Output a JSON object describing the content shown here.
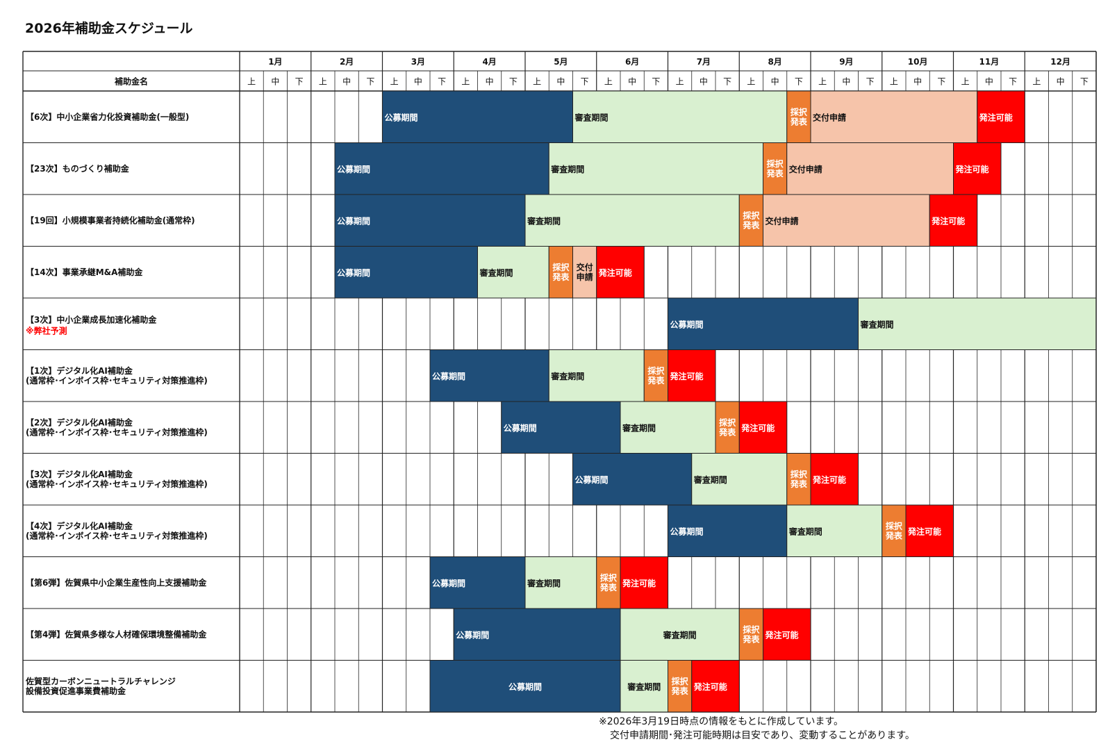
{
  "title": "2026年補助金スケジュール",
  "footnote": {
    "line1": "※2026年3月19日時点の情報をもとに作成しています。",
    "line2": "交付申請期間･発注可能時期は目安であり、変動することがあります。"
  },
  "colors": {
    "koubo": "#1f4e79",
    "shinsa": "#d9f0d0",
    "saitaku": "#ed7d31",
    "koufu": "#f6c4aa",
    "hatchu": "#ff0000"
  },
  "chart_data": {
    "type": "gantt",
    "title": "2026年補助金スケジュール",
    "row_header": "補助金名",
    "months": [
      "1月",
      "2月",
      "3月",
      "4月",
      "5月",
      "6月",
      "7月",
      "8月",
      "9月",
      "10月",
      "11月",
      "12月"
    ],
    "subperiods": [
      "上",
      "中",
      "下"
    ],
    "rows": [
      {
        "name": "【6次】中小企業省力化投資補助金(一般型)",
        "note": "",
        "segments": [
          {
            "phase": "koubo",
            "label": "公募期間",
            "start": 6,
            "end": 14
          },
          {
            "phase": "shinsa",
            "label": "審査期間",
            "start": 14,
            "end": 23
          },
          {
            "phase": "saitaku",
            "label": "採択\n発表",
            "start": 23,
            "end": 24
          },
          {
            "phase": "koufu",
            "label": "交付申請",
            "start": 24,
            "end": 31
          },
          {
            "phase": "hatchu",
            "label": "発注可能",
            "start": 31,
            "end": 33
          }
        ]
      },
      {
        "name": "【23次】ものづくり補助金",
        "note": "",
        "segments": [
          {
            "phase": "koubo",
            "label": "公募期間",
            "start": 4,
            "end": 13
          },
          {
            "phase": "shinsa",
            "label": "審査期間",
            "start": 13,
            "end": 22
          },
          {
            "phase": "saitaku",
            "label": "採択\n発表",
            "start": 22,
            "end": 23
          },
          {
            "phase": "koufu",
            "label": "交付申請",
            "start": 23,
            "end": 30
          },
          {
            "phase": "hatchu",
            "label": "発注可能",
            "start": 30,
            "end": 32
          }
        ]
      },
      {
        "name": "【19回】小規模事業者持続化補助金(通常枠)",
        "note": "",
        "segments": [
          {
            "phase": "koubo",
            "label": "公募期間",
            "start": 4,
            "end": 12
          },
          {
            "phase": "shinsa",
            "label": "審査期間",
            "start": 12,
            "end": 21
          },
          {
            "phase": "saitaku",
            "label": "採択\n発表",
            "start": 21,
            "end": 22
          },
          {
            "phase": "koufu",
            "label": "交付申請",
            "start": 22,
            "end": 29
          },
          {
            "phase": "hatchu",
            "label": "発注可能",
            "start": 29,
            "end": 31
          }
        ]
      },
      {
        "name": "【14次】事業承継M&A補助金",
        "note": "",
        "segments": [
          {
            "phase": "koubo",
            "label": "公募期間",
            "start": 4,
            "end": 10
          },
          {
            "phase": "shinsa",
            "label": "審査期間",
            "start": 10,
            "end": 13
          },
          {
            "phase": "saitaku",
            "label": "採択\n発表",
            "start": 13,
            "end": 14
          },
          {
            "phase": "koufu",
            "label": "交付\n申請",
            "start": 14,
            "end": 15
          },
          {
            "phase": "hatchu",
            "label": "発注可能",
            "start": 15,
            "end": 17
          }
        ]
      },
      {
        "name": "【3次】中小企業成長加速化補助金",
        "note": "※弊社予測",
        "segments": [
          {
            "phase": "koubo",
            "label": "公募期間",
            "start": 18,
            "end": 26
          },
          {
            "phase": "shinsa",
            "label": "審査期間",
            "start": 26,
            "end": 36
          }
        ]
      },
      {
        "name": "【1次】デジタル化AI補助金\n(通常枠･インボイス枠･セキュリティ対策推進枠)",
        "note": "",
        "segments": [
          {
            "phase": "koubo",
            "label": "公募期間",
            "start": 8,
            "end": 13
          },
          {
            "phase": "shinsa",
            "label": "審査期間",
            "start": 13,
            "end": 17
          },
          {
            "phase": "saitaku",
            "label": "採択\n発表",
            "start": 17,
            "end": 18
          },
          {
            "phase": "hatchu",
            "label": "発注可能",
            "start": 18,
            "end": 20
          }
        ]
      },
      {
        "name": "【2次】デジタル化AI補助金\n(通常枠･インボイス枠･セキュリティ対策推進枠)",
        "note": "",
        "segments": [
          {
            "phase": "koubo",
            "label": "公募期間",
            "start": 11,
            "end": 16
          },
          {
            "phase": "shinsa",
            "label": "審査期間",
            "start": 16,
            "end": 20
          },
          {
            "phase": "saitaku",
            "label": "採択\n発表",
            "start": 20,
            "end": 21
          },
          {
            "phase": "hatchu",
            "label": "発注可能",
            "start": 21,
            "end": 23
          }
        ]
      },
      {
        "name": "【3次】デジタル化AI補助金\n(通常枠･インボイス枠･セキュリティ対策推進枠)",
        "note": "",
        "segments": [
          {
            "phase": "koubo",
            "label": "公募期間",
            "start": 14,
            "end": 19
          },
          {
            "phase": "shinsa",
            "label": "審査期間",
            "start": 19,
            "end": 23
          },
          {
            "phase": "saitaku",
            "label": "採択\n発表",
            "start": 23,
            "end": 24
          },
          {
            "phase": "hatchu",
            "label": "発注可能",
            "start": 24,
            "end": 26
          }
        ]
      },
      {
        "name": "【4次】デジタル化AI補助金\n(通常枠･インボイス枠･セキュリティ対策推進枠)",
        "note": "",
        "segments": [
          {
            "phase": "koubo",
            "label": "公募期間",
            "start": 18,
            "end": 23
          },
          {
            "phase": "shinsa",
            "label": "審査期間",
            "start": 23,
            "end": 27
          },
          {
            "phase": "saitaku",
            "label": "採択\n発表",
            "start": 27,
            "end": 28
          },
          {
            "phase": "hatchu",
            "label": "発注可能",
            "start": 28,
            "end": 30
          }
        ]
      },
      {
        "name": "【第6弾】佐賀県中小企業生産性向上支援補助金",
        "note": "",
        "segments": [
          {
            "phase": "koubo",
            "label": "公募期間",
            "start": 8,
            "end": 12
          },
          {
            "phase": "shinsa",
            "label": "審査期間",
            "start": 12,
            "end": 15
          },
          {
            "phase": "saitaku",
            "label": "採択\n発表",
            "start": 15,
            "end": 16
          },
          {
            "phase": "hatchu",
            "label": "発注可能",
            "start": 16,
            "end": 18
          }
        ]
      },
      {
        "name": "【第4弾】佐賀県多様な人材確保環境整備補助金",
        "note": "",
        "segments": [
          {
            "phase": "koubo",
            "label": "公募期間",
            "start": 9,
            "end": 16
          },
          {
            "phase": "shinsa",
            "label": "審査期間",
            "start": 16,
            "end": 21
          },
          {
            "phase": "saitaku",
            "label": "採択\n発表",
            "start": 21,
            "end": 22
          },
          {
            "phase": "hatchu",
            "label": "発注可能",
            "start": 22,
            "end": 24
          }
        ]
      },
      {
        "name": "佐賀型カーボンニュートラルチャレンジ\n設備投資促進事業費補助金",
        "note": "",
        "segments": [
          {
            "phase": "koubo",
            "label": "公募期間",
            "start": 8,
            "end": 16
          },
          {
            "phase": "shinsa",
            "label": "審査期間",
            "start": 16,
            "end": 18
          },
          {
            "phase": "saitaku",
            "label": "採択\n発表",
            "start": 18,
            "end": 19
          },
          {
            "phase": "hatchu",
            "label": "発注可能",
            "start": 19,
            "end": 21
          }
        ]
      }
    ]
  }
}
